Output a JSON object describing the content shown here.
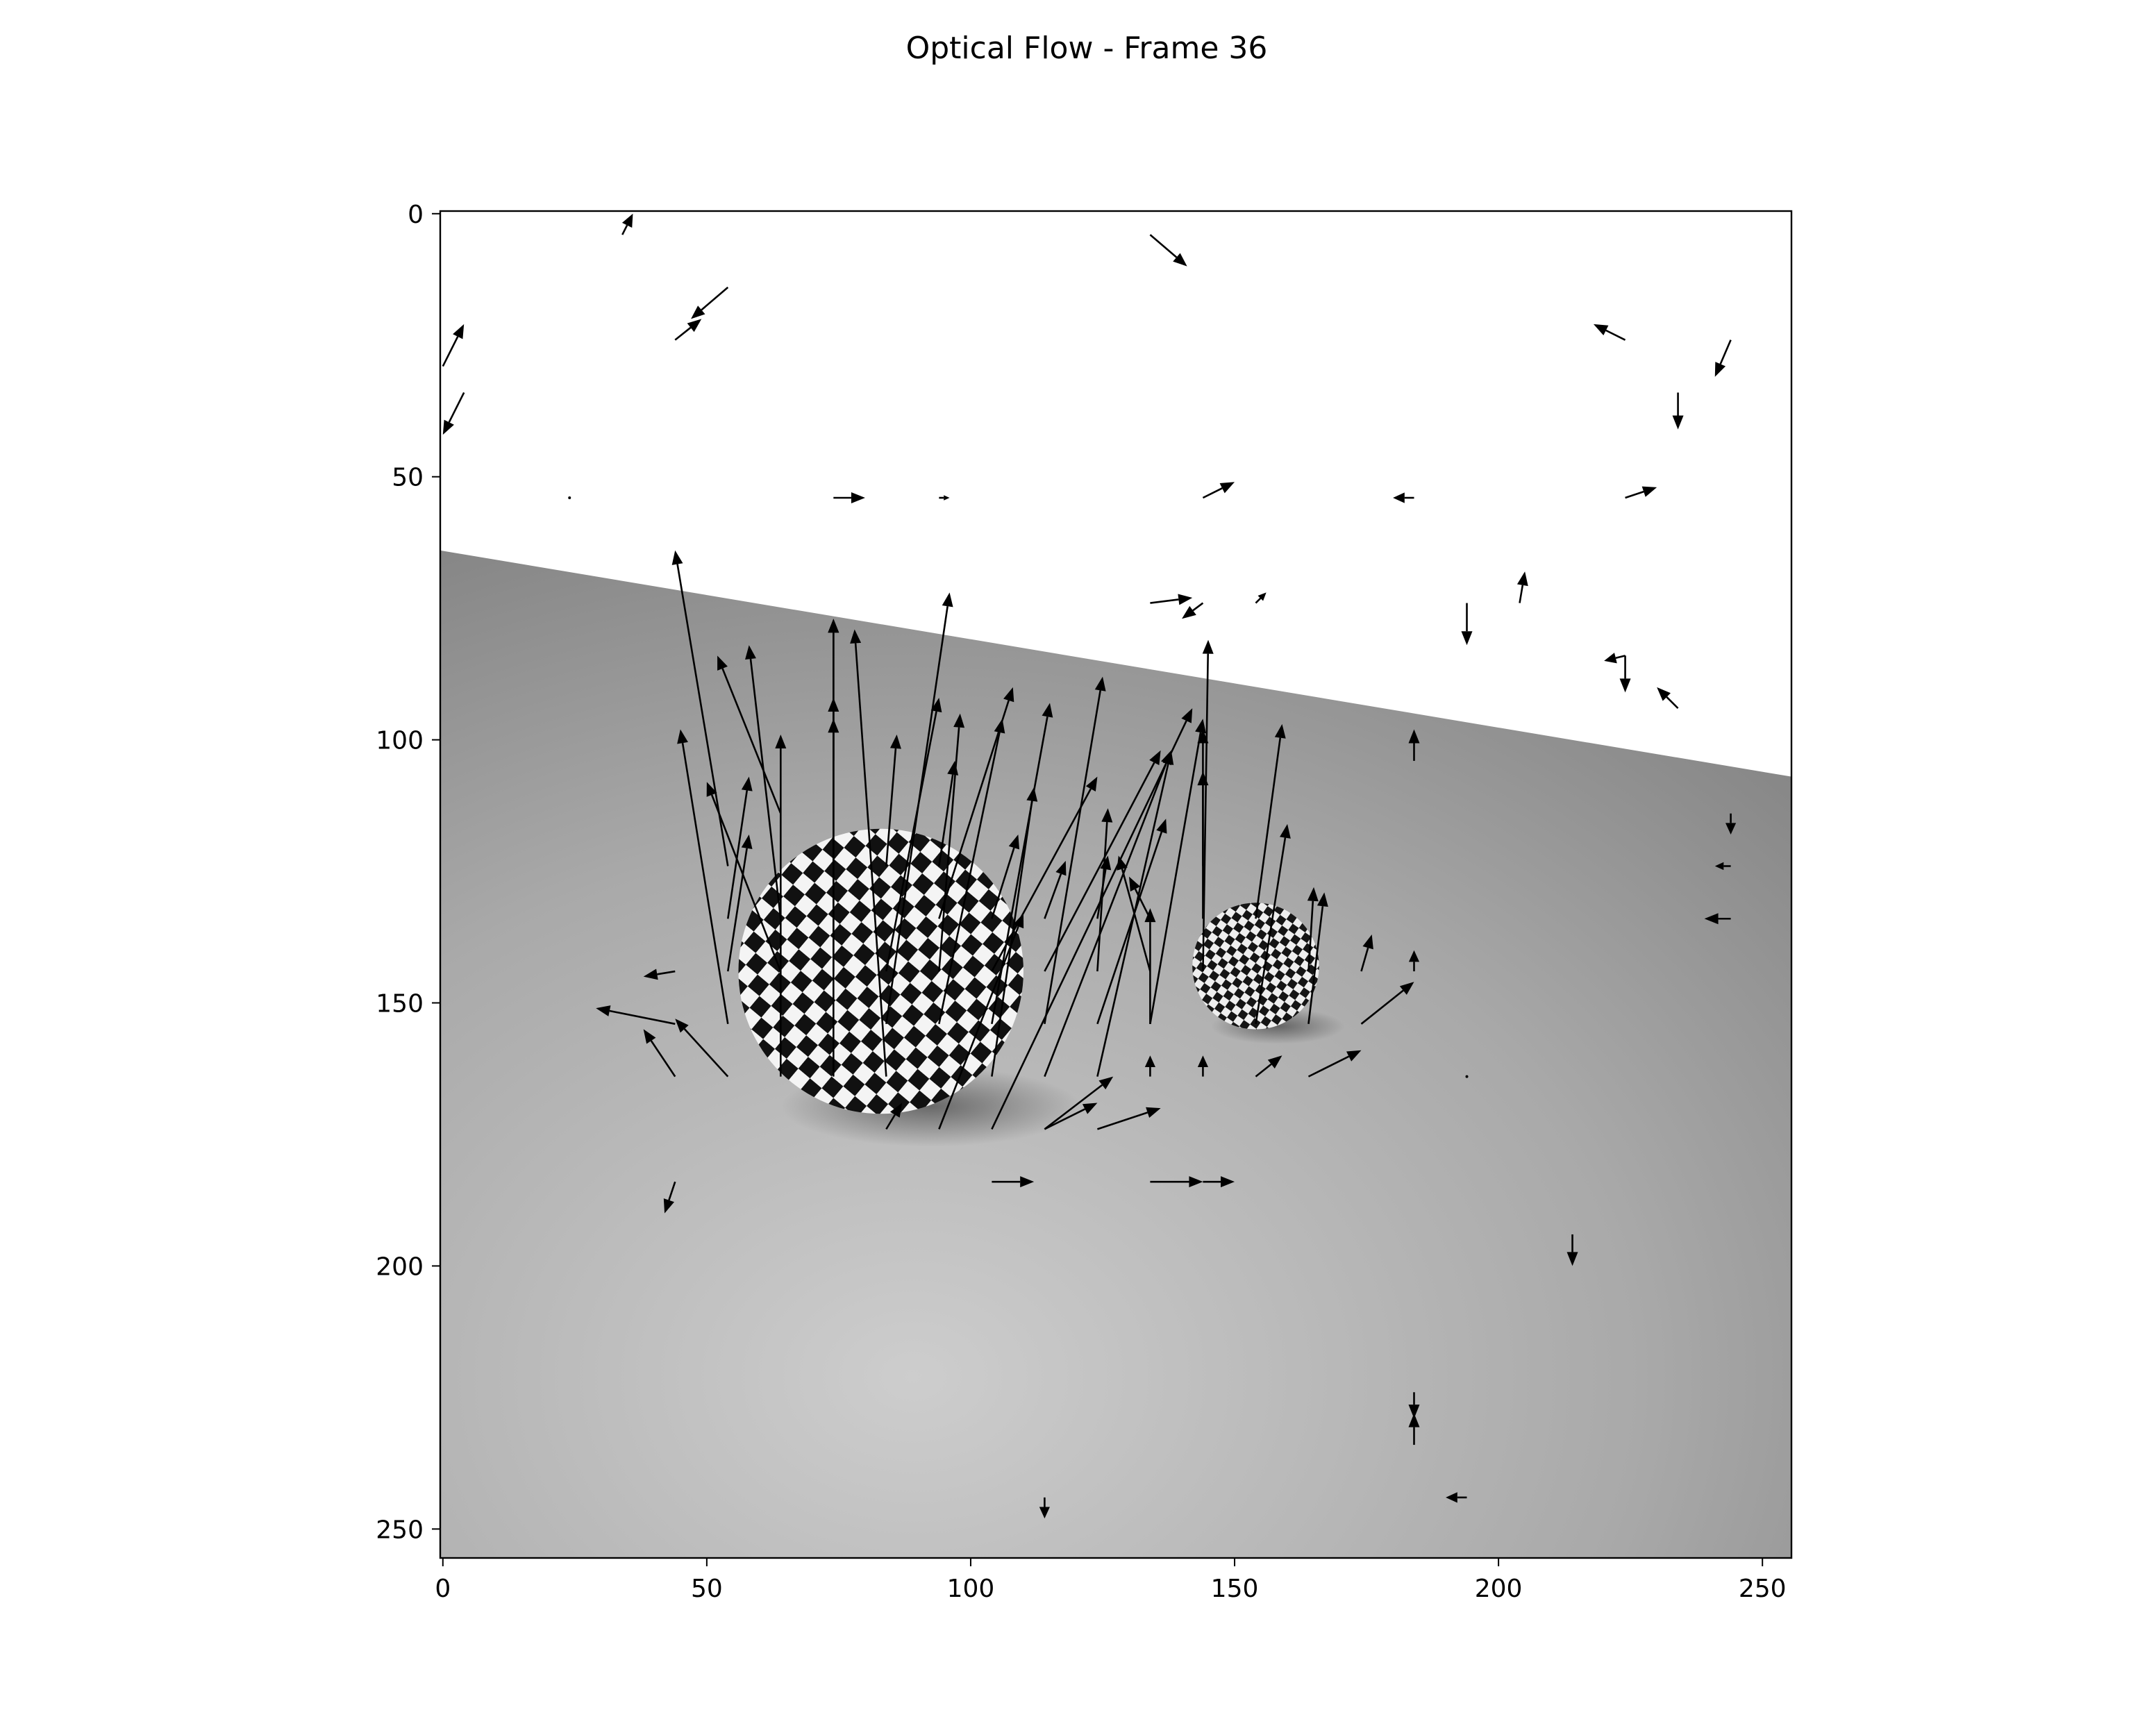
{
  "chart_data": {
    "type": "quiver",
    "title": "Optical Flow - Frame 36",
    "xlabel": "",
    "ylabel": "",
    "xlim": [
      -0.5,
      255.5
    ],
    "ylim": [
      255.5,
      -0.5
    ],
    "y_inverted": true,
    "xticks": [
      0,
      50,
      100,
      150,
      200,
      250
    ],
    "yticks": [
      0,
      50,
      100,
      150,
      200,
      250
    ],
    "grid": false,
    "background_image": {
      "description_fields": {
        "upper_region": "white",
        "lower_region": "gray floor",
        "horizon_at_x0": 64,
        "horizon_at_x255": 107
      },
      "objects": [
        {
          "name": "large ball",
          "cx": 83,
          "cy": 144,
          "r": 27
        },
        {
          "name": "small ball",
          "cx": 154,
          "cy": 143,
          "r": 12
        }
      ]
    },
    "arrow_color": "#000000",
    "grid_spacing": 10,
    "vectors": [
      {
        "x": 74,
        "y": 164,
        "u": 0,
        "v": -87
      },
      {
        "x": 84,
        "y": 164,
        "u": -6,
        "v": -85
      },
      {
        "x": 74,
        "y": 144,
        "u": 0,
        "v": -67
      },
      {
        "x": 64,
        "y": 164,
        "u": 0,
        "v": -65
      },
      {
        "x": 64,
        "y": 134,
        "u": -6,
        "v": -52
      },
      {
        "x": 54,
        "y": 124,
        "u": -10,
        "v": -60
      },
      {
        "x": 64,
        "y": 114,
        "u": -12,
        "v": -30
      },
      {
        "x": 84,
        "y": 154,
        "u": 12,
        "v": -82
      },
      {
        "x": 94,
        "y": 144,
        "u": 4,
        "v": -49
      },
      {
        "x": 94,
        "y": 154,
        "u": 12,
        "v": -58
      },
      {
        "x": 104,
        "y": 154,
        "u": 11,
        "v": -61
      },
      {
        "x": 104,
        "y": 144,
        "u": 20,
        "v": -37
      },
      {
        "x": 104,
        "y": 164,
        "u": 8,
        "v": -55
      },
      {
        "x": 114,
        "y": 154,
        "u": 11,
        "v": -66
      },
      {
        "x": 114,
        "y": 144,
        "u": 22,
        "v": -42
      },
      {
        "x": 114,
        "y": 164,
        "u": 24,
        "v": -62
      },
      {
        "x": 124,
        "y": 164,
        "u": 14,
        "v": -62
      },
      {
        "x": 124,
        "y": 154,
        "u": 13,
        "v": -39
      },
      {
        "x": 94,
        "y": 174,
        "u": 16,
        "v": -41
      },
      {
        "x": 104,
        "y": 174,
        "u": 38,
        "v": -80
      },
      {
        "x": 94,
        "y": 134,
        "u": 14,
        "v": -44
      },
      {
        "x": 84,
        "y": 144,
        "u": 10,
        "v": -52
      },
      {
        "x": 54,
        "y": 144,
        "u": 4,
        "v": -26
      },
      {
        "x": 54,
        "y": 154,
        "u": -9,
        "v": -56
      },
      {
        "x": 54,
        "y": 134,
        "u": 4,
        "v": -27
      },
      {
        "x": 44,
        "y": 154,
        "u": -15,
        "v": -3
      },
      {
        "x": 44,
        "y": 164,
        "u": -6,
        "v": -9
      },
      {
        "x": 54,
        "y": 164,
        "u": -10,
        "v": -11
      },
      {
        "x": 44,
        "y": 144,
        "u": -6,
        "v": 1
      },
      {
        "x": 84,
        "y": 174,
        "u": 3,
        "v": -5
      },
      {
        "x": 114,
        "y": 174,
        "u": 13,
        "v": -10
      },
      {
        "x": 114,
        "y": 174,
        "u": 10,
        "v": -5
      },
      {
        "x": 124,
        "y": 174,
        "u": 12,
        "v": -4
      },
      {
        "x": 134,
        "y": 144,
        "u": -6,
        "v": -22
      },
      {
        "x": 134,
        "y": 154,
        "u": 0,
        "v": -22
      },
      {
        "x": 134,
        "y": 134,
        "u": -4,
        "v": -8
      },
      {
        "x": 124,
        "y": 144,
        "u": 2,
        "v": -31
      },
      {
        "x": 134,
        "y": 164,
        "u": 0,
        "v": -4
      },
      {
        "x": 144,
        "y": 164,
        "u": 0,
        "v": -4
      },
      {
        "x": 144,
        "y": 134,
        "u": 0,
        "v": -36
      },
      {
        "x": 144,
        "y": 144,
        "u": 1,
        "v": -63
      },
      {
        "x": 154,
        "y": 134,
        "u": 5,
        "v": -37
      },
      {
        "x": 154,
        "y": 154,
        "u": 6,
        "v": -38
      },
      {
        "x": 164,
        "y": 144,
        "u": 1,
        "v": -16
      },
      {
        "x": 164,
        "y": 154,
        "u": 3,
        "v": -25
      },
      {
        "x": 154,
        "y": 164,
        "u": 5,
        "v": -4
      },
      {
        "x": 164,
        "y": 164,
        "u": 10,
        "v": -5
      },
      {
        "x": 174,
        "y": 154,
        "u": 10,
        "v": -8
      },
      {
        "x": 174,
        "y": 144,
        "u": 2,
        "v": -7
      },
      {
        "x": 134,
        "y": 154,
        "u": 10,
        "v": -58
      },
      {
        "x": 144,
        "y": 124,
        "u": 0,
        "v": -18
      },
      {
        "x": 124,
        "y": 134,
        "u": 2,
        "v": -12
      },
      {
        "x": 114,
        "y": 134,
        "u": 4,
        "v": -11
      },
      {
        "x": 104,
        "y": 134,
        "u": 5,
        "v": -16
      },
      {
        "x": 94,
        "y": 124,
        "u": 3,
        "v": -20
      },
      {
        "x": 84,
        "y": 124,
        "u": 2,
        "v": -25
      },
      {
        "x": 74,
        "y": 124,
        "u": 0,
        "v": -32
      },
      {
        "x": 64,
        "y": 144,
        "u": -14,
        "v": -36
      },
      {
        "x": 74,
        "y": 104,
        "u": 0,
        "v": -8
      },
      {
        "x": 4,
        "y": 34,
        "u": -4,
        "v": 8
      },
      {
        "x": 34,
        "y": 4,
        "u": 2,
        "v": -4
      },
      {
        "x": 44,
        "y": 24,
        "u": 5,
        "v": -4
      },
      {
        "x": 54,
        "y": 14,
        "u": -7,
        "v": 6
      },
      {
        "x": 134,
        "y": 4,
        "u": 7,
        "v": 6
      },
      {
        "x": 24,
        "y": 54,
        "u": 0,
        "v": 0
      },
      {
        "x": 74,
        "y": 54,
        "u": 6,
        "v": 0
      },
      {
        "x": 94,
        "y": 54,
        "u": 2,
        "v": 0
      },
      {
        "x": 144,
        "y": 54,
        "u": 6,
        "v": -3
      },
      {
        "x": 184,
        "y": 54,
        "u": -4,
        "v": 0
      },
      {
        "x": 224,
        "y": 54,
        "u": 6,
        "v": -2
      },
      {
        "x": 234,
        "y": 34,
        "u": 0,
        "v": 7
      },
      {
        "x": 244,
        "y": 24,
        "u": -3,
        "v": 7
      },
      {
        "x": 224,
        "y": 24,
        "u": -6,
        "v": -3
      },
      {
        "x": 234,
        "y": 94,
        "u": -4,
        "v": -4
      },
      {
        "x": 144,
        "y": 74,
        "u": -4,
        "v": 3
      },
      {
        "x": 134,
        "y": 74,
        "u": 8,
        "v": -1
      },
      {
        "x": 154,
        "y": 74,
        "u": 2,
        "v": -2
      },
      {
        "x": 194,
        "y": 74,
        "u": 0,
        "v": 8
      },
      {
        "x": 204,
        "y": 74,
        "u": 1,
        "v": -6
      },
      {
        "x": 224,
        "y": 84,
        "u": 0,
        "v": 7
      },
      {
        "x": 224,
        "y": 84,
        "u": -4,
        "v": 1
      },
      {
        "x": 184,
        "y": 104,
        "u": 0,
        "v": -6
      },
      {
        "x": 244,
        "y": 114,
        "u": 0,
        "v": 4
      },
      {
        "x": 244,
        "y": 124,
        "u": -3,
        "v": 0
      },
      {
        "x": 244,
        "y": 134,
        "u": -5,
        "v": 0
      },
      {
        "x": 184,
        "y": 144,
        "u": 0,
        "v": -4
      },
      {
        "x": 194,
        "y": 164,
        "u": 0,
        "v": 0
      },
      {
        "x": 214,
        "y": 194,
        "u": 0,
        "v": 6
      },
      {
        "x": 184,
        "y": 234,
        "u": 0,
        "v": -6
      },
      {
        "x": 184,
        "y": 224,
        "u": 0,
        "v": 5
      },
      {
        "x": 194,
        "y": 244,
        "u": -4,
        "v": 0
      },
      {
        "x": 114,
        "y": 244,
        "u": 0,
        "v": 4
      },
      {
        "x": 44,
        "y": 184,
        "u": -2,
        "v": 6
      },
      {
        "x": 0,
        "y": 29,
        "u": 4,
        "v": -8
      },
      {
        "x": 144,
        "y": 184,
        "u": 6,
        "v": 0
      },
      {
        "x": 104,
        "y": 184,
        "u": 8,
        "v": 0
      },
      {
        "x": 134,
        "y": 184,
        "u": 10,
        "v": 0
      }
    ]
  }
}
